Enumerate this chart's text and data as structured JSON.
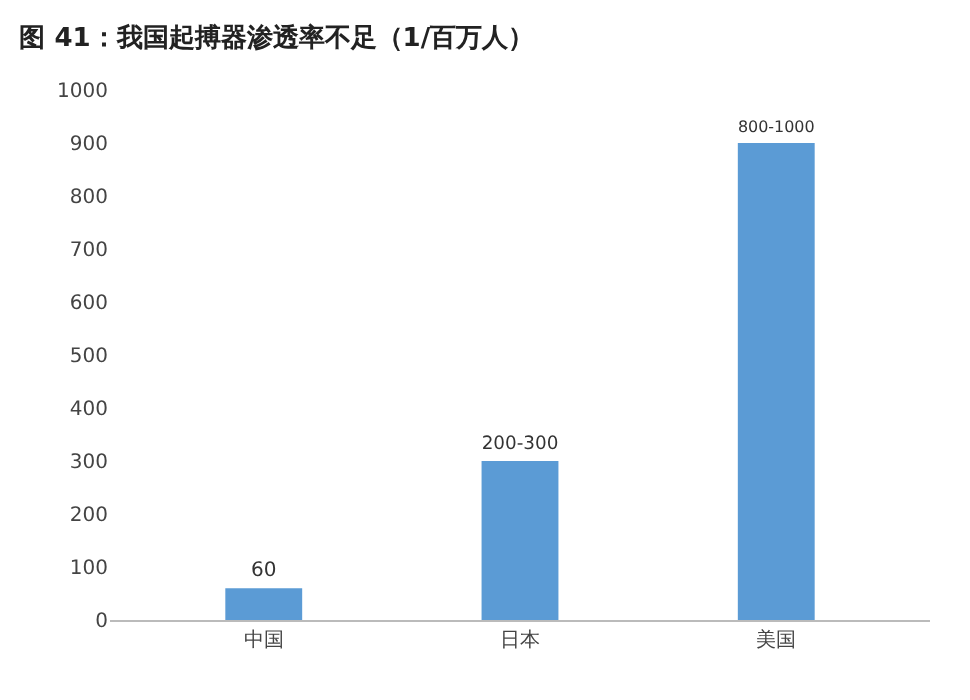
{
  "chart_data": {
    "type": "bar",
    "title": "图 41：我国起搏器渗透率不足（1/百万人）",
    "categories": [
      "中国",
      "日本",
      "美国"
    ],
    "values": [
      60,
      300,
      900
    ],
    "value_labels": [
      "60",
      "200-300",
      "800-1000"
    ],
    "color": "#5b9bd5",
    "ylim": [
      0,
      1000
    ],
    "yticks": [
      0,
      100,
      200,
      300,
      400,
      500,
      600,
      700,
      800,
      900,
      1000
    ],
    "grid": false,
    "legend": false
  }
}
